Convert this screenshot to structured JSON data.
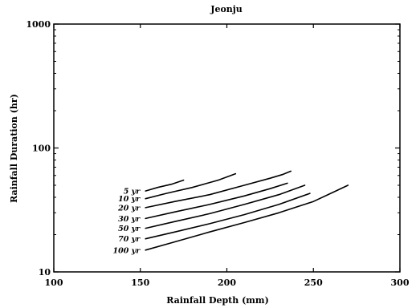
{
  "chart_data": {
    "type": "line",
    "title": "Jeonju",
    "xlabel": "Rainfall Depth (mm)",
    "ylabel": "Rainfall Duration (hr)",
    "xlim": [
      100,
      300
    ],
    "ylim": [
      10,
      1000
    ],
    "yscale": "log",
    "x_ticks": [
      "100",
      "150",
      "200",
      "250",
      "300"
    ],
    "y_ticks": [
      "10",
      "100",
      "1000"
    ],
    "grid": false,
    "legend": "inline labels at left end of each curve",
    "series": [
      {
        "name": "5 yr",
        "x": [
          153,
          160,
          168,
          175
        ],
        "y": [
          45,
          48,
          51,
          55
        ]
      },
      {
        "name": "10 yr",
        "x": [
          153,
          165,
          180,
          195,
          205
        ],
        "y": [
          39,
          43,
          48,
          55,
          62
        ]
      },
      {
        "name": "20 yr",
        "x": [
          153,
          170,
          190,
          210,
          225,
          232,
          237
        ],
        "y": [
          33,
          37,
          42,
          50,
          57,
          61,
          65
        ]
      },
      {
        "name": "30 yr",
        "x": [
          153,
          170,
          190,
          210,
          225,
          235
        ],
        "y": [
          27,
          30.5,
          35,
          41,
          47,
          52
        ]
      },
      {
        "name": "50 yr",
        "x": [
          153,
          170,
          190,
          210,
          230,
          245
        ],
        "y": [
          22.5,
          25.5,
          29.5,
          35,
          42,
          50
        ]
      },
      {
        "name": "70 yr",
        "x": [
          153,
          170,
          190,
          210,
          230,
          248
        ],
        "y": [
          18.5,
          21,
          24.5,
          29,
          35,
          43
        ]
      },
      {
        "name": "100 yr",
        "x": [
          153,
          170,
          190,
          210,
          230,
          250,
          260,
          270
        ],
        "y": [
          15,
          17.5,
          21,
          25,
          30,
          37,
          43,
          50
        ]
      }
    ]
  }
}
